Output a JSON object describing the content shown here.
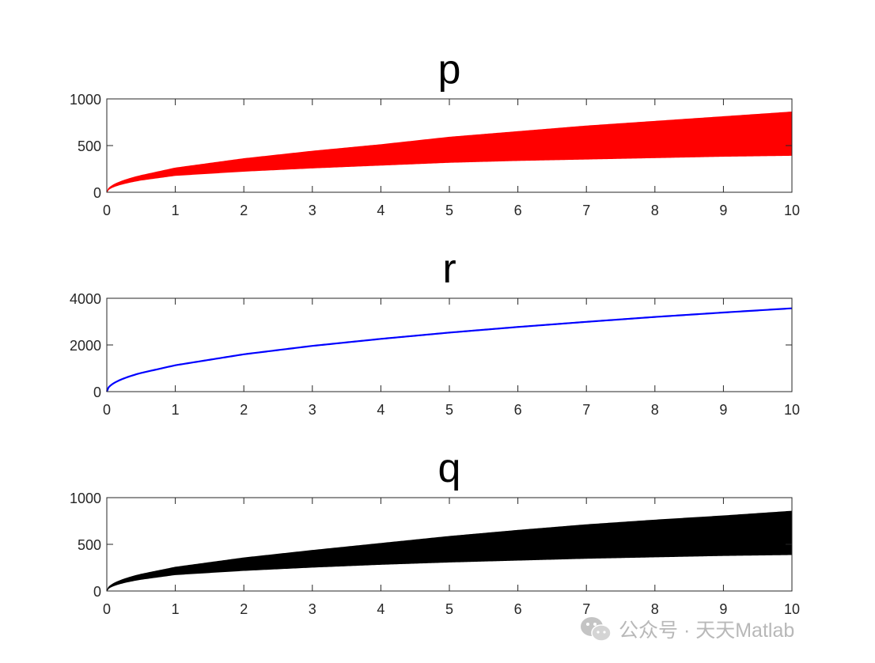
{
  "chart_data": [
    {
      "type": "area",
      "title": "p",
      "color": "#ff0000",
      "xlim": [
        0,
        10
      ],
      "ylim": [
        0,
        1000
      ],
      "xticks": [
        0,
        1,
        2,
        3,
        4,
        5,
        6,
        7,
        8,
        9,
        10
      ],
      "yticks": [
        0,
        500,
        1000
      ],
      "xtick_labels": [
        "0",
        "1",
        "2",
        "3",
        "4",
        "5",
        "6",
        "7",
        "8",
        "9",
        "10"
      ],
      "ytick_labels": [
        "0",
        "500",
        "1000"
      ],
      "x": [
        0,
        0.5,
        1,
        2,
        3,
        4,
        5,
        6,
        7,
        8,
        9,
        10
      ],
      "upper": [
        0,
        180,
        260,
        360,
        440,
        510,
        590,
        650,
        710,
        760,
        810,
        860
      ],
      "lower": [
        0,
        130,
        180,
        225,
        260,
        290,
        320,
        340,
        355,
        370,
        385,
        395
      ]
    },
    {
      "type": "line",
      "title": "r",
      "color": "#0000ff",
      "xlim": [
        0,
        10
      ],
      "ylim": [
        0,
        4000
      ],
      "xticks": [
        0,
        1,
        2,
        3,
        4,
        5,
        6,
        7,
        8,
        9,
        10
      ],
      "yticks": [
        0,
        2000,
        4000
      ],
      "xtick_labels": [
        "0",
        "1",
        "2",
        "3",
        "4",
        "5",
        "6",
        "7",
        "8",
        "9",
        "10"
      ],
      "ytick_labels": [
        "0",
        "2000",
        "4000"
      ],
      "x": [
        0,
        0.5,
        1,
        2,
        3,
        4,
        5,
        6,
        7,
        8,
        9,
        10
      ],
      "y": [
        0,
        800,
        1130,
        1600,
        1960,
        2260,
        2530,
        2770,
        2990,
        3200,
        3390,
        3570
      ]
    },
    {
      "type": "area",
      "title": "q",
      "color": "#000000",
      "xlim": [
        0,
        10
      ],
      "ylim": [
        0,
        1000
      ],
      "xticks": [
        0,
        1,
        2,
        3,
        4,
        5,
        6,
        7,
        8,
        9,
        10
      ],
      "yticks": [
        0,
        500,
        1000
      ],
      "xtick_labels": [
        "0",
        "1",
        "2",
        "3",
        "4",
        "5",
        "6",
        "7",
        "8",
        "9",
        "10"
      ],
      "ytick_labels": [
        "0",
        "500",
        "1000"
      ],
      "x": [
        0,
        0.5,
        1,
        2,
        3,
        4,
        5,
        6,
        7,
        8,
        9,
        10
      ],
      "upper": [
        0,
        180,
        255,
        355,
        435,
        510,
        585,
        650,
        710,
        760,
        805,
        855
      ],
      "lower": [
        0,
        125,
        175,
        220,
        255,
        285,
        310,
        330,
        350,
        365,
        380,
        390
      ]
    }
  ],
  "watermark": {
    "icon": "wechat-icon",
    "text": "公众号 · 天天Matlab",
    "color": "#b8b8b8"
  }
}
